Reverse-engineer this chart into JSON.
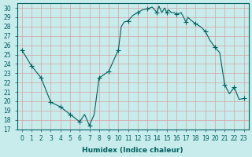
{
  "xlabel": "Humidex (Indice chaleur)",
  "ylabel": "",
  "bg_color": "#c8ecec",
  "grid_color": "#d9a0a0",
  "line_color": "#006060",
  "marker_color": "#006060",
  "xlim": [
    -0.5,
    23.5
  ],
  "ylim": [
    17,
    30.5
  ],
  "yticks": [
    17,
    18,
    19,
    20,
    21,
    22,
    23,
    24,
    25,
    26,
    27,
    28,
    29,
    30
  ],
  "xticks": [
    0,
    1,
    2,
    3,
    4,
    5,
    6,
    7,
    8,
    9,
    10,
    11,
    12,
    13,
    14,
    15,
    16,
    17,
    18,
    19,
    20,
    21,
    22,
    23
  ],
  "x": [
    0,
    1,
    2,
    3,
    4,
    5,
    6,
    6.5,
    7,
    7.5,
    8,
    9,
    10,
    10.3,
    10.6,
    11,
    11.5,
    12,
    12.5,
    13,
    13.5,
    14,
    14.2,
    14.5,
    14.8,
    15,
    15.2,
    15.5,
    15.8,
    16,
    16.5,
    17,
    17.2,
    17.5,
    18,
    18.5,
    19,
    19.5,
    20,
    20.5,
    21,
    21.5,
    22,
    22.5,
    23
  ],
  "y": [
    25.5,
    23.8,
    22.5,
    19.9,
    19.4,
    18.6,
    17.8,
    18.6,
    17.4,
    18.6,
    22.5,
    23.2,
    25.5,
    28.0,
    28.5,
    28.6,
    29.2,
    29.5,
    29.8,
    29.9,
    30.1,
    29.5,
    30.2,
    29.5,
    30.0,
    29.5,
    29.8,
    29.5,
    29.5,
    29.3,
    29.5,
    28.5,
    29.0,
    28.7,
    28.3,
    28.0,
    27.5,
    26.5,
    25.8,
    25.2,
    21.8,
    20.8,
    21.5,
    20.2,
    20.3
  ],
  "marker_x": [
    0,
    1,
    2,
    3,
    4,
    5,
    6,
    7,
    8,
    9,
    10,
    11,
    12,
    13,
    14,
    15,
    16,
    17,
    18,
    19,
    20,
    21,
    22,
    23
  ],
  "marker_y": [
    25.5,
    23.8,
    22.5,
    19.9,
    19.4,
    18.6,
    17.8,
    17.4,
    22.5,
    23.2,
    25.5,
    28.6,
    29.5,
    29.9,
    29.5,
    29.5,
    29.3,
    28.5,
    28.3,
    27.5,
    25.8,
    21.8,
    21.5,
    20.3
  ]
}
